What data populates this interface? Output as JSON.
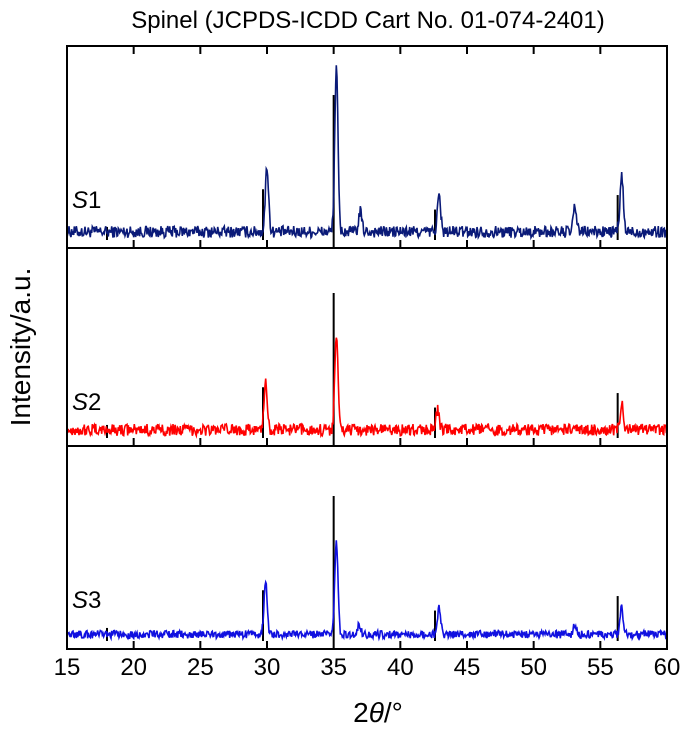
{
  "chart_data": {
    "type": "line",
    "title": "Spinel (JCPDS-ICDD Cart No. 01-074-2401)",
    "xlabel": "2θ/°",
    "xlabel_parts": {
      "prefix": "2",
      "symbol": "θ",
      "suffix": "/°"
    },
    "ylabel": "Intensity/a.u.",
    "xlim": [
      15,
      60
    ],
    "x_ticks": [
      15,
      20,
      25,
      30,
      35,
      40,
      45,
      50,
      55,
      60
    ],
    "x_tick_labels": [
      "15",
      "20",
      "25",
      "30",
      "35",
      "40",
      "45",
      "50",
      "55",
      "60"
    ],
    "grid": false,
    "reference_pattern": {
      "positions": [
        18.0,
        29.7,
        35.0,
        42.6,
        56.3
      ],
      "relative_intensity": [
        0.09,
        0.35,
        1.0,
        0.21,
        0.31
      ]
    },
    "panels": [
      {
        "label_italic": "S",
        "label_number": "1",
        "color": "#0a1a78",
        "baseline": 0.05,
        "noise": 0.045,
        "peaks": [
          {
            "x": 30.0,
            "y": 0.4
          },
          {
            "x": 35.2,
            "y": 1.0
          },
          {
            "x": 37.0,
            "y": 0.12
          },
          {
            "x": 42.9,
            "y": 0.22
          },
          {
            "x": 53.1,
            "y": 0.15
          },
          {
            "x": 56.6,
            "y": 0.34
          }
        ]
      },
      {
        "label_italic": "S",
        "label_number": "2",
        "color": "#ff0000",
        "baseline": 0.05,
        "noise": 0.045,
        "peaks": [
          {
            "x": 29.9,
            "y": 0.3
          },
          {
            "x": 35.2,
            "y": 0.58
          },
          {
            "x": 42.8,
            "y": 0.12
          },
          {
            "x": 56.6,
            "y": 0.16
          }
        ]
      },
      {
        "label_italic": "S",
        "label_number": "3",
        "color": "#1010e0",
        "baseline": 0.04,
        "noise": 0.03,
        "peaks": [
          {
            "x": 29.9,
            "y": 0.32
          },
          {
            "x": 35.2,
            "y": 0.56
          },
          {
            "x": 36.9,
            "y": 0.06
          },
          {
            "x": 42.9,
            "y": 0.16
          },
          {
            "x": 53.1,
            "y": 0.06
          },
          {
            "x": 56.6,
            "y": 0.16
          }
        ]
      }
    ]
  }
}
